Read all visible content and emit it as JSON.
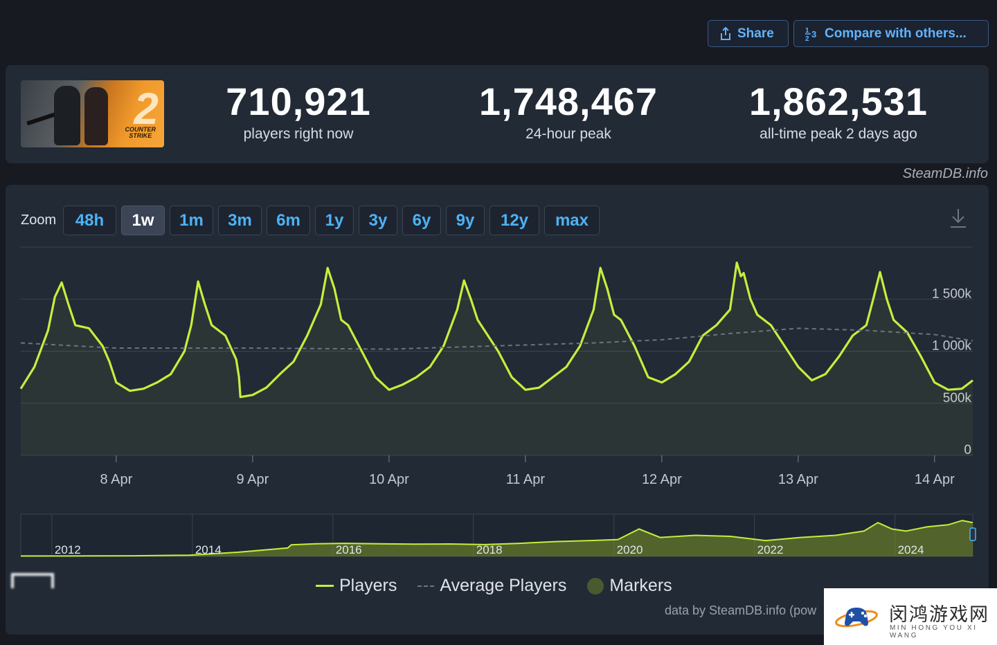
{
  "header": {
    "app_title": "",
    "share_label": "Share",
    "compare_label": "Compare with others..."
  },
  "stats": {
    "current": {
      "value": "710,921",
      "label": "players right now"
    },
    "peak_24h": {
      "value": "1,748,467",
      "label": "24-hour peak"
    },
    "all_time": {
      "value": "1,862,531",
      "label": "all-time peak 2 days ago"
    }
  },
  "game_cover": {
    "number": "2",
    "line1": "COUNTER",
    "line2": "STRIKE"
  },
  "source_label": "SteamDB.info",
  "zoom": {
    "label": "Zoom",
    "options": [
      "48h",
      "1w",
      "1m",
      "3m",
      "6m",
      "1y",
      "3y",
      "6y",
      "9y",
      "12y",
      "max"
    ],
    "selected": "1w"
  },
  "legend": {
    "players": "Players",
    "average": "Average Players",
    "markers": "Markers"
  },
  "credit": "data by SteamDB.info (pow",
  "site_badge": {
    "cn": "闵鸿游戏网",
    "en": "MIN HONG YOU XI WANG"
  },
  "colors": {
    "players": "#c4ef3d",
    "average": "#6c7480",
    "accent": "#4db2f5",
    "panel": "#222a36"
  },
  "chart_data": [
    {
      "type": "line",
      "title": "",
      "xlabel": "",
      "ylabel": "",
      "x_start": 7.3,
      "x_end": 14.28,
      "x_ticks": [
        8,
        9,
        10,
        11,
        12,
        13,
        14
      ],
      "x_tick_labels": [
        "8 Apr",
        "9 Apr",
        "10 Apr",
        "11 Apr",
        "12 Apr",
        "13 Apr",
        "14 Apr"
      ],
      "y_ticks": [
        0,
        500000,
        1000000,
        1500000
      ],
      "y_tick_labels": [
        "0",
        "500k",
        "1 000k",
        "1 500k"
      ],
      "ylim": [
        0,
        2000000
      ],
      "grid": true,
      "series": [
        {
          "name": "Players",
          "color": "#c4ef3d",
          "x": [
            7.3,
            7.4,
            7.5,
            7.55,
            7.6,
            7.65,
            7.7,
            7.8,
            7.9,
            7.95,
            8.0,
            8.1,
            8.2,
            8.3,
            8.4,
            8.5,
            8.55,
            8.6,
            8.65,
            8.7,
            8.8,
            8.88,
            8.9,
            8.91,
            9.0,
            9.1,
            9.2,
            9.3,
            9.4,
            9.5,
            9.55,
            9.6,
            9.65,
            9.7,
            9.8,
            9.9,
            10.0,
            10.1,
            10.2,
            10.3,
            10.4,
            10.5,
            10.55,
            10.6,
            10.65,
            10.7,
            10.8,
            10.9,
            11.0,
            11.1,
            11.2,
            11.3,
            11.4,
            11.5,
            11.55,
            11.6,
            11.65,
            11.7,
            11.8,
            11.9,
            12.0,
            12.1,
            12.2,
            12.3,
            12.4,
            12.5,
            12.55,
            12.58,
            12.6,
            12.65,
            12.7,
            12.8,
            12.9,
            13.0,
            13.1,
            13.2,
            13.3,
            13.4,
            13.5,
            13.55,
            13.6,
            13.65,
            13.7,
            13.8,
            13.9,
            14.0,
            14.1,
            14.2,
            14.28
          ],
          "y": [
            640000,
            850000,
            1200000,
            1520000,
            1660000,
            1450000,
            1250000,
            1220000,
            1050000,
            900000,
            700000,
            620000,
            640000,
            700000,
            780000,
            1000000,
            1250000,
            1670000,
            1450000,
            1250000,
            1150000,
            920000,
            750000,
            560000,
            580000,
            650000,
            780000,
            900000,
            1150000,
            1450000,
            1800000,
            1600000,
            1300000,
            1250000,
            1000000,
            750000,
            630000,
            680000,
            750000,
            850000,
            1050000,
            1400000,
            1680000,
            1500000,
            1300000,
            1200000,
            1000000,
            750000,
            630000,
            650000,
            750000,
            850000,
            1050000,
            1400000,
            1800000,
            1600000,
            1350000,
            1300000,
            1050000,
            750000,
            700000,
            780000,
            900000,
            1150000,
            1250000,
            1400000,
            1850000,
            1720000,
            1750000,
            1500000,
            1350000,
            1250000,
            1050000,
            850000,
            720000,
            780000,
            950000,
            1150000,
            1250000,
            1500000,
            1760000,
            1500000,
            1300000,
            1180000,
            950000,
            700000,
            630000,
            640000,
            720000
          ]
        },
        {
          "name": "Average Players",
          "color": "#6c7480",
          "x": [
            7.3,
            8.0,
            9.0,
            10.0,
            11.0,
            11.5,
            12.0,
            12.5,
            13.0,
            13.5,
            14.0,
            14.28
          ],
          "y": [
            1080000,
            1030000,
            1030000,
            1020000,
            1060000,
            1080000,
            1110000,
            1170000,
            1220000,
            1200000,
            1160000,
            1100000
          ]
        }
      ]
    },
    {
      "type": "area",
      "title": "",
      "xlabel": "",
      "ylabel": "",
      "x_tick_labels": [
        "2012",
        "2014",
        "2016",
        "2018",
        "2020",
        "2022",
        "2024"
      ],
      "x_ticks": [
        2012,
        2014,
        2016,
        2018,
        2020,
        2022,
        2024
      ],
      "xlim": [
        2011.4,
        2024.95
      ],
      "ylim": [
        0,
        2000000
      ],
      "series": [
        {
          "name": "Players",
          "color": "#c4ef3d",
          "x": [
            2011.4,
            2012.0,
            2013.0,
            2013.8,
            2014.5,
            2015.2,
            2015.25,
            2015.6,
            2016.0,
            2016.5,
            2017.0,
            2017.5,
            2018.0,
            2018.5,
            2019.0,
            2019.5,
            2019.9,
            2020.2,
            2020.5,
            2021.0,
            2021.5,
            2022.0,
            2022.5,
            2023.0,
            2023.4,
            2023.6,
            2023.8,
            2024.0,
            2024.3,
            2024.6,
            2024.8,
            2024.95
          ],
          "y": [
            20000,
            20000,
            30000,
            60000,
            200000,
            400000,
            550000,
            600000,
            620000,
            600000,
            580000,
            590000,
            560000,
            620000,
            700000,
            750000,
            800000,
            1300000,
            900000,
            1000000,
            950000,
            750000,
            900000,
            1000000,
            1200000,
            1600000,
            1300000,
            1200000,
            1400000,
            1500000,
            1700000,
            1600000
          ]
        }
      ]
    }
  ]
}
